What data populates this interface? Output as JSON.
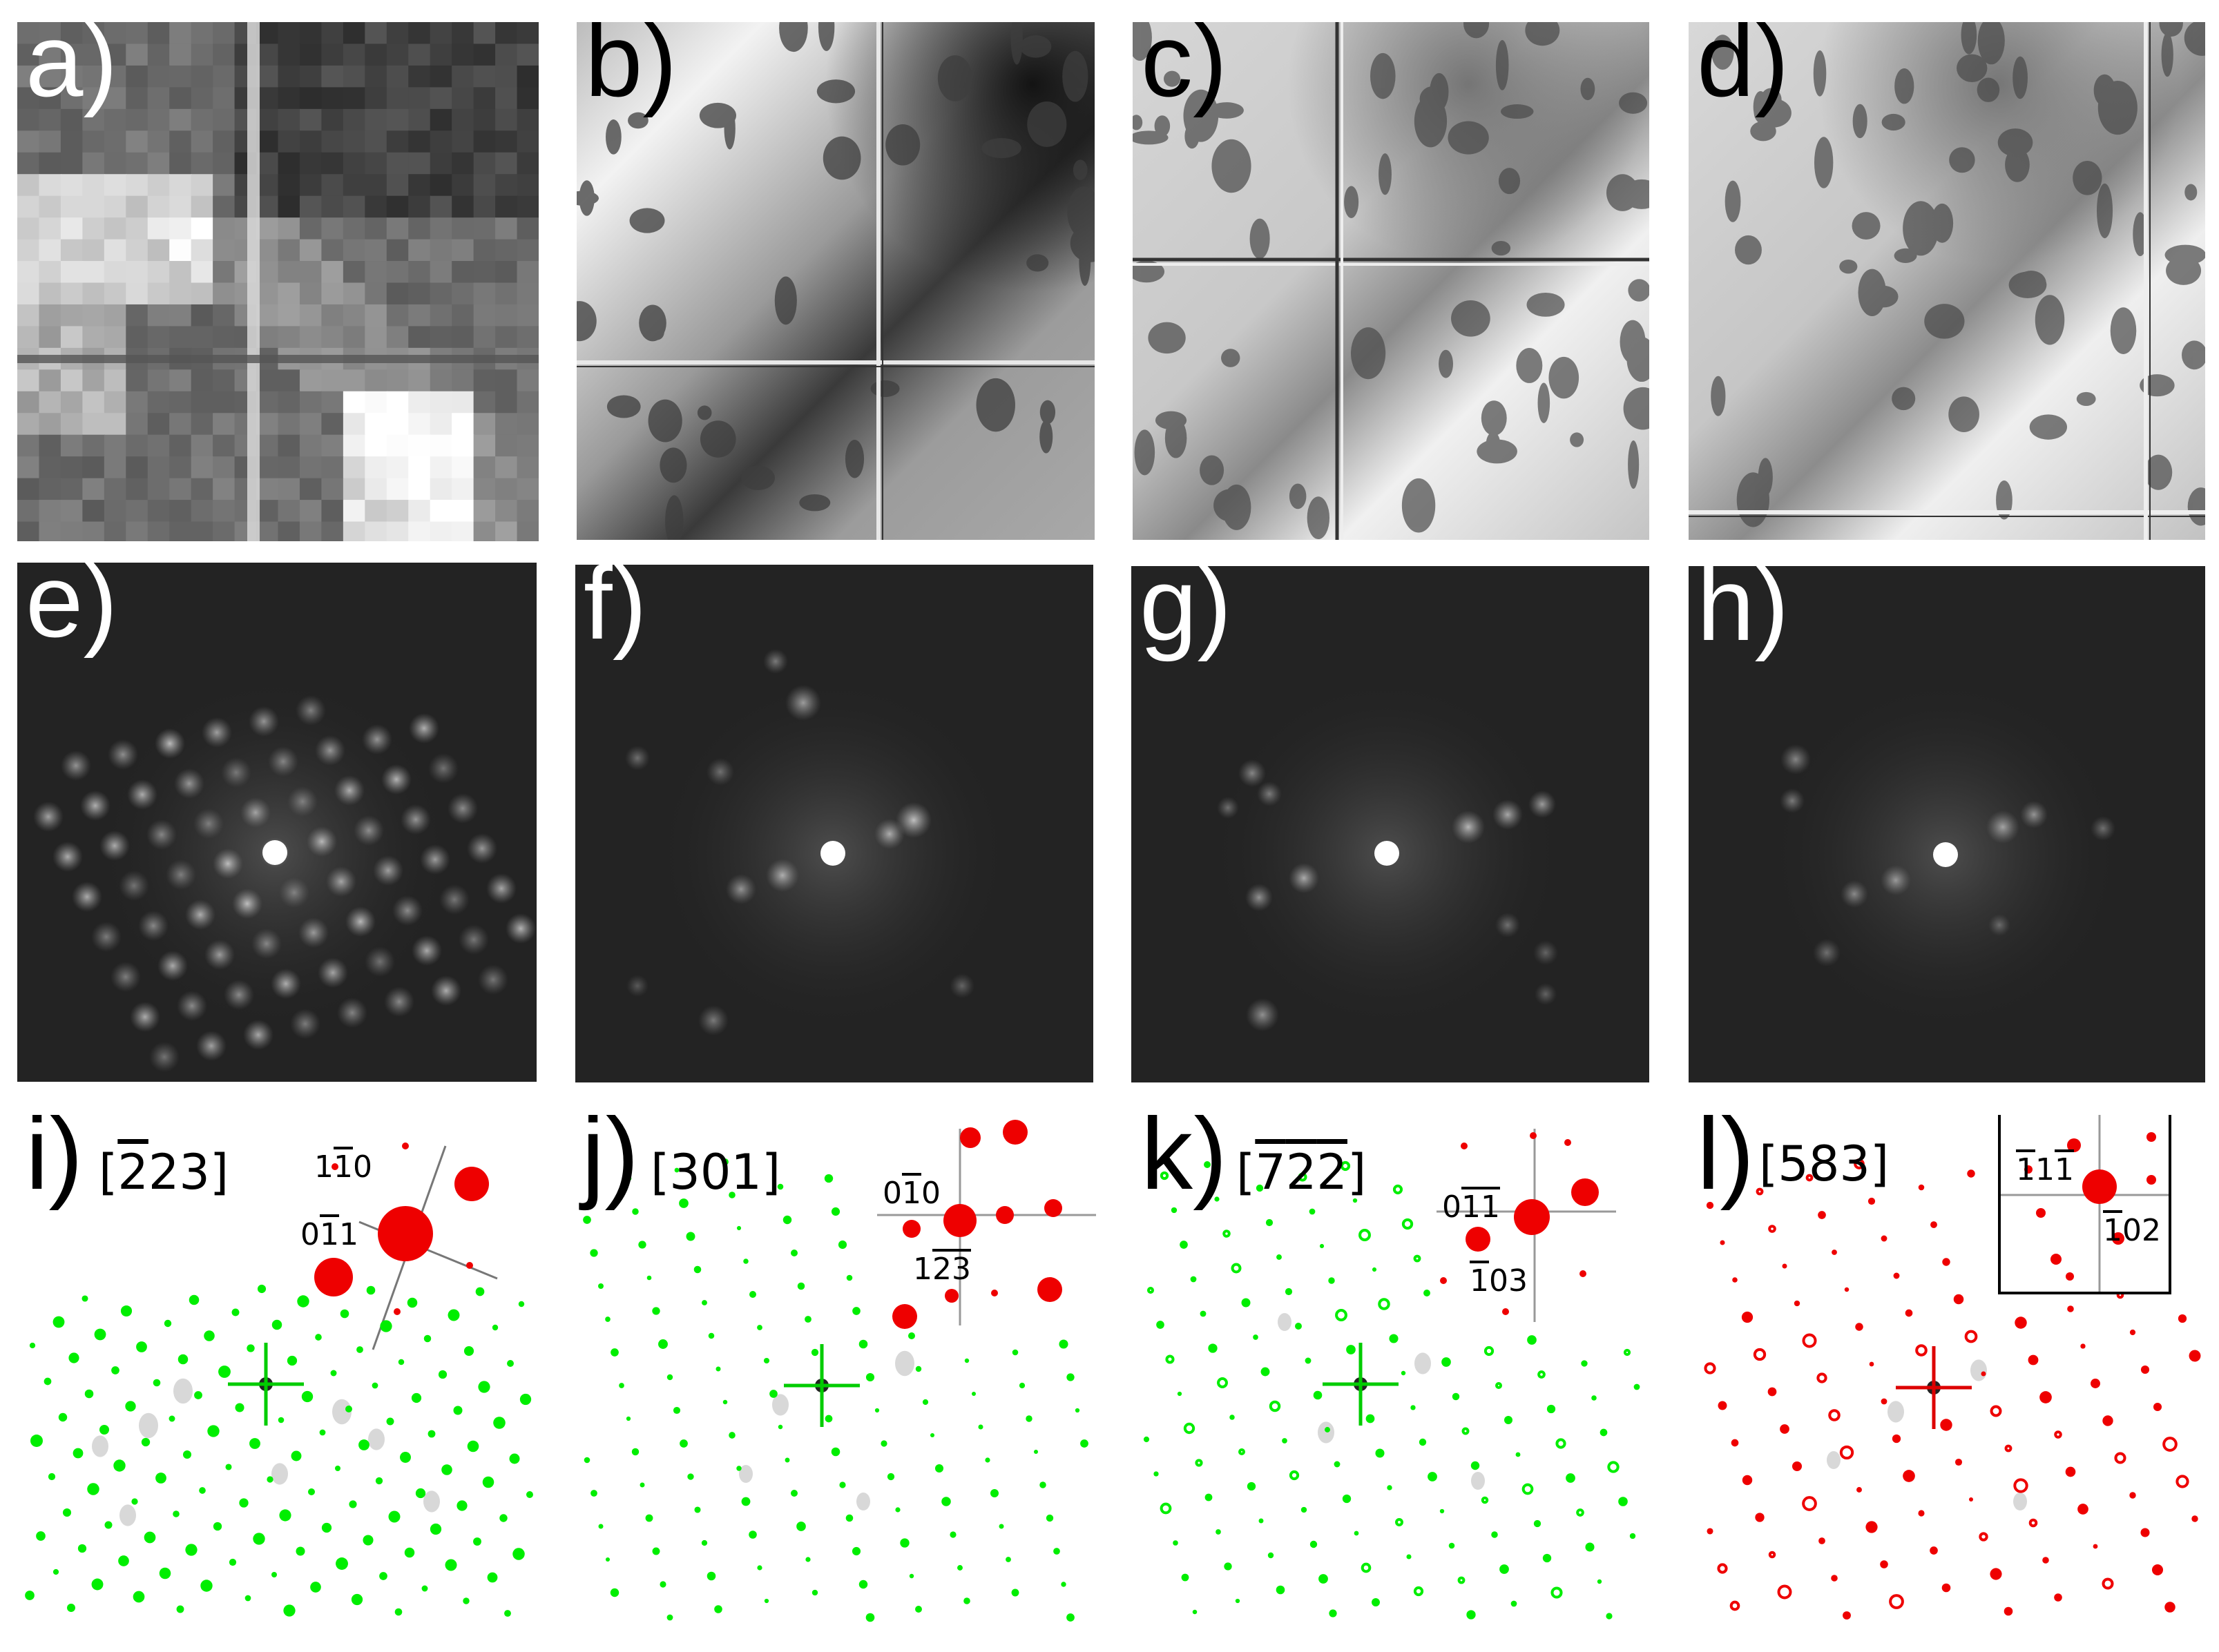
{
  "panels": {
    "a": {
      "label": "a)"
    },
    "b": {
      "label": "b)"
    },
    "c": {
      "label": "c)"
    },
    "d": {
      "label": "d)"
    },
    "e": {
      "label": "e)"
    },
    "f": {
      "label": "f)"
    },
    "g": {
      "label": "g)"
    },
    "h": {
      "label": "h)"
    },
    "i": {
      "label": "i)",
      "zone_pre": "[",
      "zone_bar": "2",
      "zone_post": "23]",
      "idx1_a": "1",
      "idx1_bar": "1",
      "idx1_b": "0",
      "idx2_a": "0",
      "idx2_bar": "1",
      "idx2_b": "1"
    },
    "j": {
      "label": "j)",
      "zone": "[301]",
      "idx1_a": "0",
      "idx1_bar": "1",
      "idx1_b": "0",
      "idx2_a": "1",
      "idx2_bar1": "2",
      "idx2_bar2": "3"
    },
    "k": {
      "label": "k)",
      "zone_pre": "[",
      "zone_bar1": "7",
      "zone_bar2": "2",
      "zone_bar3": "2",
      "zone_post": "]",
      "idx1_a": "0",
      "idx1_bar1": "1",
      "idx1_bar2": "1",
      "idx2_bar": "1",
      "idx2_b": "03"
    },
    "l": {
      "label": "l)",
      "zone": "[583]",
      "idx1_bar1": "1",
      "idx1_mid": "1",
      "idx1_bar2": "1",
      "idx2_bar": "1",
      "idx2_b": "02"
    }
  },
  "colors": {
    "simulated_spot_green": "#00ee00",
    "simulated_spot_red": "#ee0000",
    "center_cross_green": "#00cc00",
    "center_cross_red": "#dd0000"
  }
}
